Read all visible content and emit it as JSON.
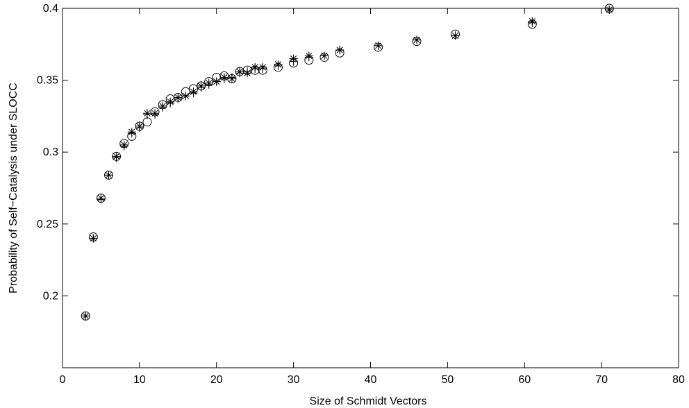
{
  "chart_data": {
    "type": "scatter",
    "xlabel": "Size of Schmidt Vectors",
    "ylabel": "Probability of Self−Catalysis under SLOCC",
    "xlim": [
      0,
      80
    ],
    "ylim": [
      0.15,
      0.4
    ],
    "x_ticks": [
      "0",
      "10",
      "20",
      "30",
      "40",
      "50",
      "60",
      "70",
      "80"
    ],
    "y_ticks": [
      "0.2",
      "0.25",
      "0.3",
      "0.35",
      "0.4"
    ],
    "grid": false,
    "series": [
      {
        "marker": "circle",
        "x": [
          3,
          4,
          5,
          6,
          7,
          8,
          9,
          10,
          11,
          12,
          13,
          14,
          15,
          16,
          17,
          18,
          19,
          20,
          21,
          22,
          23,
          24,
          25,
          26,
          28,
          30,
          32,
          34,
          36,
          41,
          46,
          51,
          61,
          71
        ],
        "y": [
          0.186,
          0.241,
          0.268,
          0.284,
          0.297,
          0.306,
          0.311,
          0.318,
          0.321,
          0.328,
          0.333,
          0.337,
          0.338,
          0.342,
          0.344,
          0.346,
          0.349,
          0.352,
          0.353,
          0.351,
          0.356,
          0.357,
          0.357,
          0.357,
          0.359,
          0.362,
          0.364,
          0.366,
          0.369,
          0.373,
          0.377,
          0.382,
          0.389,
          0.4
        ]
      },
      {
        "marker": "plus",
        "x": [
          3,
          4,
          5,
          6,
          7,
          8,
          9,
          10,
          11,
          12,
          13,
          14,
          15,
          16,
          17,
          18,
          19,
          20,
          21,
          22,
          23,
          24,
          25,
          26,
          28,
          30,
          32,
          34,
          36,
          41,
          46,
          51,
          61,
          71
        ],
        "y": [
          0.186,
          0.24,
          0.267,
          0.284,
          0.296,
          0.304,
          0.313,
          0.317,
          0.326,
          0.326,
          0.331,
          0.334,
          0.337,
          0.339,
          0.341,
          0.345,
          0.347,
          0.349,
          0.351,
          0.352,
          0.355,
          0.356,
          0.358,
          0.358,
          0.36,
          0.363,
          0.366,
          0.367,
          0.371,
          0.374,
          0.378,
          0.381,
          0.39,
          0.399
        ]
      },
      {
        "marker": "asterisk",
        "x": [
          3,
          4,
          5,
          6,
          7,
          8,
          9,
          10,
          11,
          12,
          13,
          14,
          15,
          16,
          17,
          18,
          19,
          20,
          21,
          22,
          23,
          24,
          25,
          26,
          28,
          30,
          32,
          34,
          36,
          41,
          46,
          51,
          61,
          71
        ],
        "y": [
          0.186,
          0.24,
          0.268,
          0.284,
          0.297,
          0.305,
          0.314,
          0.318,
          0.327,
          0.327,
          0.332,
          0.335,
          0.338,
          0.339,
          0.342,
          0.346,
          0.348,
          0.349,
          0.352,
          0.351,
          0.356,
          0.355,
          0.359,
          0.359,
          0.361,
          0.365,
          0.367,
          0.367,
          0.371,
          0.374,
          0.378,
          0.381,
          0.391,
          0.399
        ]
      }
    ]
  }
}
